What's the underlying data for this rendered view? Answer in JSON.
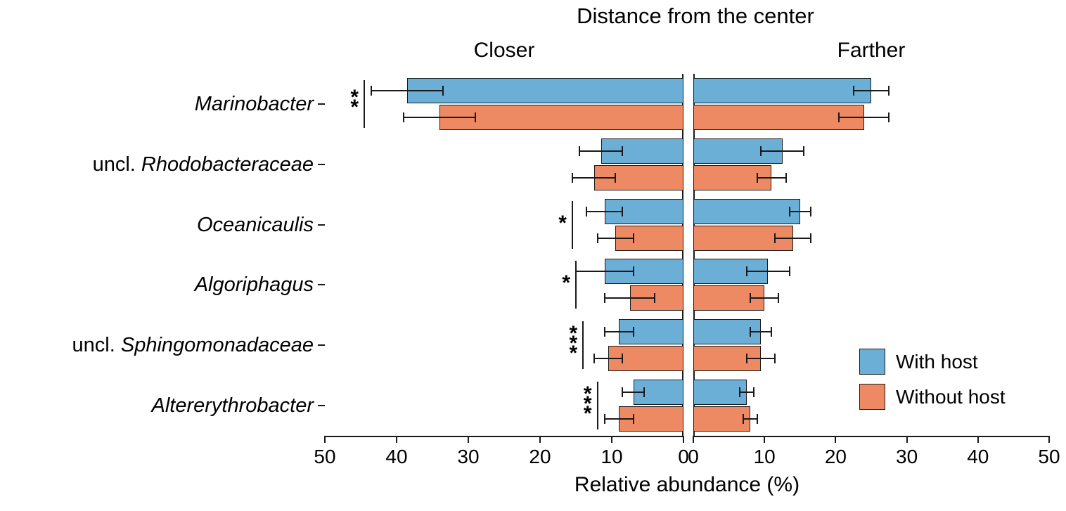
{
  "chart_data": {
    "type": "bar",
    "variant": "horizontal-diverging-grouped",
    "title": "Distance from the center",
    "xlabel": "Relative abundance (%)",
    "xlim": [
      0,
      50
    ],
    "x_ticks": [
      0,
      10,
      20,
      30,
      40,
      50
    ],
    "grid": false,
    "panels": [
      {
        "id": "closer",
        "label": "Closer",
        "side": "left"
      },
      {
        "id": "farther",
        "label": "Farther",
        "side": "right"
      }
    ],
    "categories": [
      {
        "prefix": "",
        "name": "Marinobacter"
      },
      {
        "prefix": "uncl.",
        "name": "Rhodobacteraceae"
      },
      {
        "prefix": "",
        "name": "Oceanicaulis"
      },
      {
        "prefix": "",
        "name": "Algoriphagus"
      },
      {
        "prefix": "uncl.",
        "name": "Sphingomonadaceae"
      },
      {
        "prefix": "",
        "name": "Altererythrobacter"
      }
    ],
    "series": [
      {
        "name": "With host",
        "color": "#6BAED6",
        "closer": {
          "values": [
            38.5,
            11.5,
            11.0,
            11.0,
            9.0,
            7.0
          ],
          "errors": [
            5.0,
            3.0,
            2.5,
            4.0,
            2.0,
            1.5
          ]
        },
        "farther": {
          "values": [
            25.0,
            12.5,
            15.0,
            10.5,
            9.5,
            7.5
          ],
          "errors": [
            2.5,
            3.0,
            1.5,
            3.0,
            1.5,
            1.0
          ]
        }
      },
      {
        "name": "Without host",
        "color": "#EE8A63",
        "closer": {
          "values": [
            34.0,
            12.5,
            9.5,
            7.5,
            10.5,
            9.0
          ],
          "errors": [
            5.0,
            3.0,
            2.5,
            3.5,
            2.0,
            2.0
          ]
        },
        "farther": {
          "values": [
            24.0,
            11.0,
            14.0,
            10.0,
            9.5,
            8.0
          ],
          "errors": [
            3.5,
            2.0,
            2.5,
            2.0,
            2.0,
            1.0
          ]
        }
      }
    ],
    "significance": [
      {
        "category_index": 0,
        "panel": "closer",
        "stars": "**",
        "x": 44.5
      },
      {
        "category_index": 2,
        "panel": "closer",
        "stars": "*",
        "x": 15.5
      },
      {
        "category_index": 3,
        "panel": "closer",
        "stars": "*",
        "x": 15.0
      },
      {
        "category_index": 4,
        "panel": "closer",
        "stars": "***",
        "x": 14.0
      },
      {
        "category_index": 5,
        "panel": "closer",
        "stars": "***",
        "x": 12.0
      }
    ],
    "legend": {
      "position": "inside-bottom-right"
    }
  }
}
